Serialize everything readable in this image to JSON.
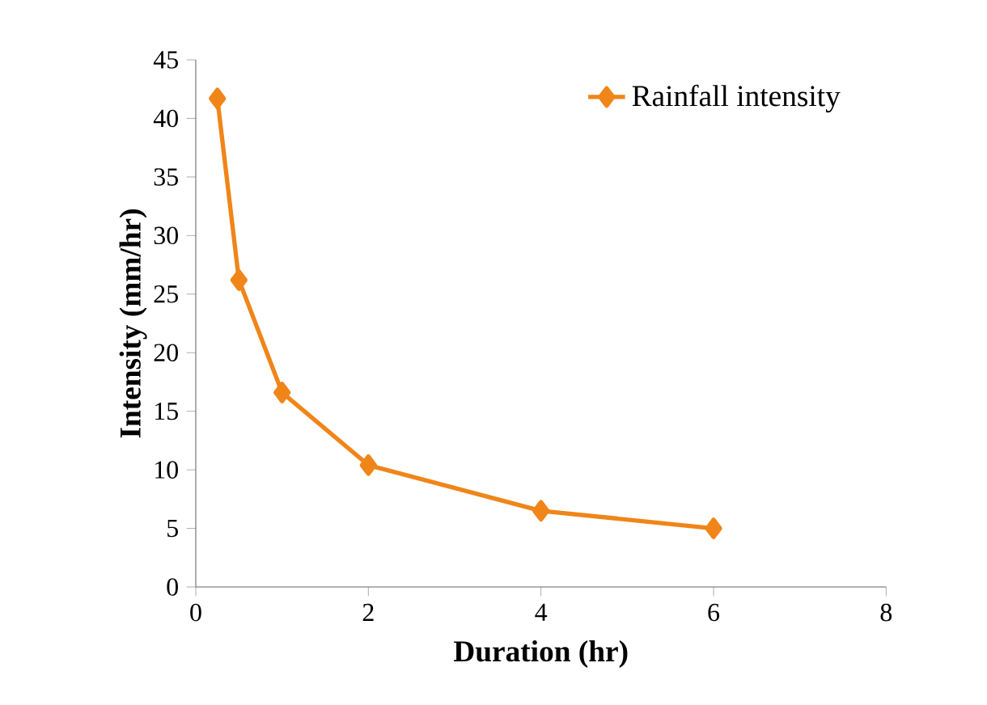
{
  "chart_data": {
    "type": "line",
    "xlabel": "Duration (hr)",
    "ylabel": "Intensity (mm/hr)",
    "series": [
      {
        "name": "Rainfall intensity",
        "color": "#f08519",
        "x": [
          0.25,
          0.5,
          1,
          2,
          4,
          6
        ],
        "values": [
          41.7,
          26.2,
          16.6,
          10.4,
          6.5,
          5.0
        ]
      }
    ],
    "xlim": [
      0,
      8
    ],
    "xticks": [
      0,
      2,
      4,
      6,
      8
    ],
    "ylim": [
      0,
      45
    ],
    "yticks": [
      0,
      5,
      10,
      15,
      20,
      25,
      30,
      35,
      40,
      45
    ],
    "grid": false,
    "legend": "top right",
    "marker": "diamond",
    "line_style": "solid"
  }
}
